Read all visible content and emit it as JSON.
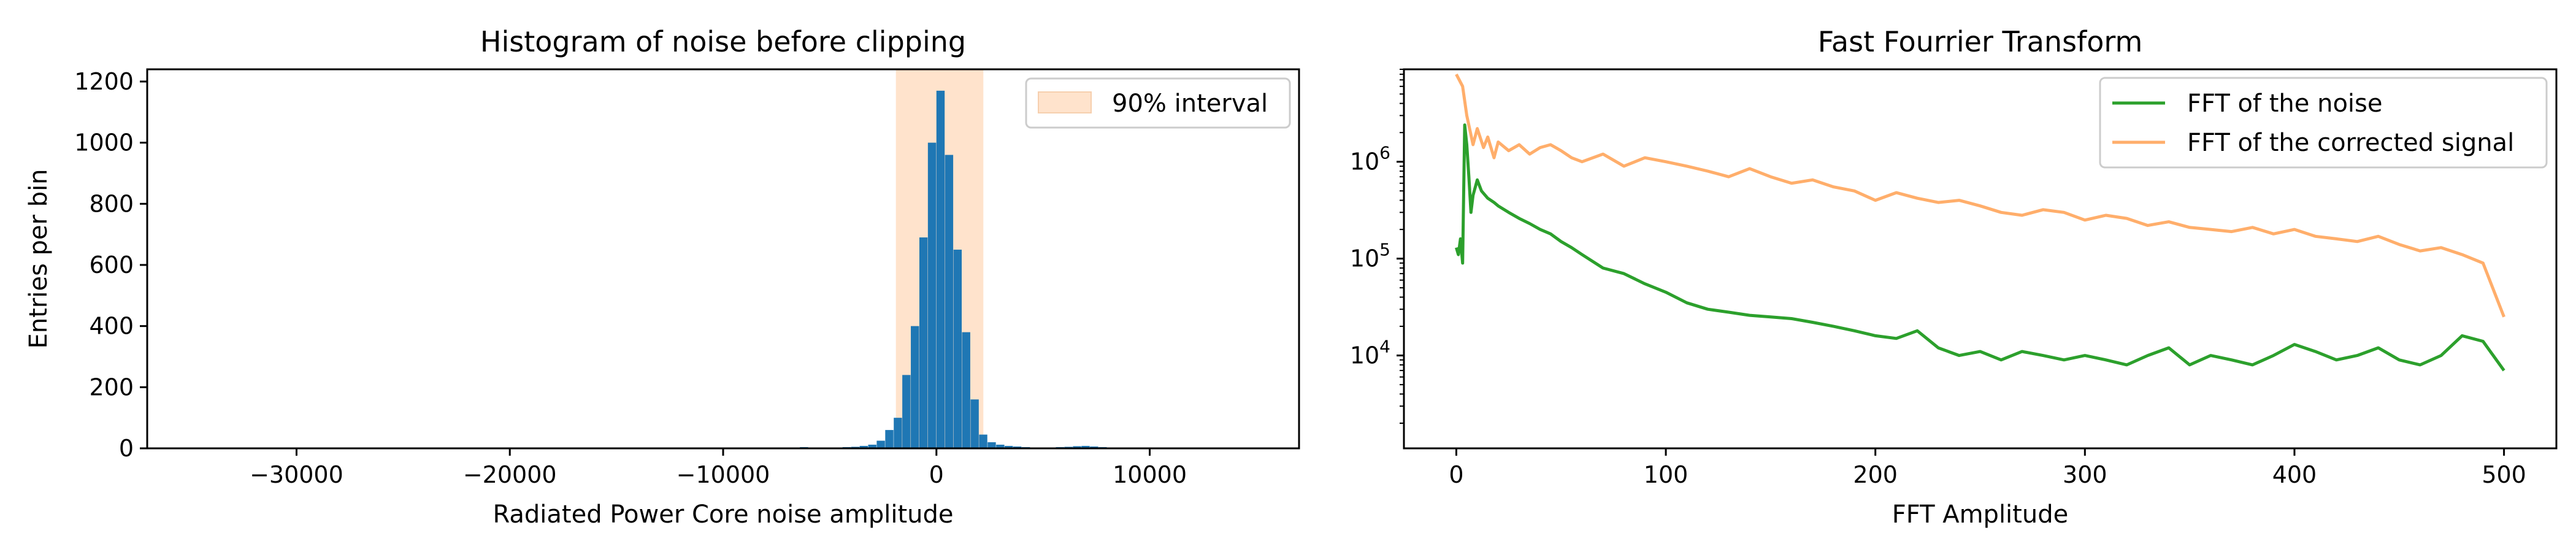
{
  "chart_data": [
    {
      "type": "bar",
      "title": "Histogram of noise before clipping",
      "xlabel": "Radiated Power Core noise amplitude",
      "ylabel": "Entries per bin",
      "xlim": [
        -37000,
        17000
      ],
      "ylim": [
        0,
        1240
      ],
      "xticks": [
        -30000,
        -20000,
        -10000,
        0,
        10000
      ],
      "xtick_labels": [
        "−30000",
        "−20000",
        "−10000",
        "0",
        "10000"
      ],
      "yticks": [
        0,
        200,
        400,
        600,
        800,
        1000,
        1200
      ],
      "ytick_labels": [
        "0",
        "200",
        "400",
        "600",
        "800",
        "1000",
        "1200"
      ],
      "grid": false,
      "legend_position": "top-right",
      "bar_color": "#1f77b4",
      "shaded_interval": {
        "label": "90% interval",
        "x0": -1900,
        "x1": 2200,
        "color": "#ffe3cc"
      },
      "bin_width": 400,
      "bins": [
        {
          "x": -7400,
          "v": 2
        },
        {
          "x": -7000,
          "v": 3
        },
        {
          "x": -6600,
          "v": 3
        },
        {
          "x": -6200,
          "v": 4
        },
        {
          "x": -5800,
          "v": 3
        },
        {
          "x": -5400,
          "v": 2
        },
        {
          "x": -5000,
          "v": 2
        },
        {
          "x": -4600,
          "v": 3
        },
        {
          "x": -4200,
          "v": 4
        },
        {
          "x": -3800,
          "v": 5
        },
        {
          "x": -3400,
          "v": 8
        },
        {
          "x": -3000,
          "v": 12
        },
        {
          "x": -2600,
          "v": 25
        },
        {
          "x": -2200,
          "v": 60
        },
        {
          "x": -1800,
          "v": 100
        },
        {
          "x": -1400,
          "v": 240
        },
        {
          "x": -1000,
          "v": 400
        },
        {
          "x": -600,
          "v": 690
        },
        {
          "x": -200,
          "v": 1000
        },
        {
          "x": 200,
          "v": 1170
        },
        {
          "x": 600,
          "v": 960
        },
        {
          "x": 1000,
          "v": 650
        },
        {
          "x": 1400,
          "v": 380
        },
        {
          "x": 1800,
          "v": 160
        },
        {
          "x": 2200,
          "v": 45
        },
        {
          "x": 2600,
          "v": 20
        },
        {
          "x": 3000,
          "v": 12
        },
        {
          "x": 3400,
          "v": 8
        },
        {
          "x": 3800,
          "v": 6
        },
        {
          "x": 4200,
          "v": 4
        },
        {
          "x": 4600,
          "v": 3
        },
        {
          "x": 5000,
          "v": 3
        },
        {
          "x": 5400,
          "v": 3
        },
        {
          "x": 5800,
          "v": 4
        },
        {
          "x": 6200,
          "v": 5
        },
        {
          "x": 6600,
          "v": 7
        },
        {
          "x": 7000,
          "v": 8
        },
        {
          "x": 7400,
          "v": 6
        },
        {
          "x": 7800,
          "v": 4
        },
        {
          "x": 8200,
          "v": 2
        }
      ]
    },
    {
      "type": "line",
      "title": "Fast Fourrier Transform",
      "xlabel": "FFT Amplitude",
      "ylabel": "",
      "xlim": [
        -25,
        525
      ],
      "ylim": [
        1100,
        9000000
      ],
      "yscale": "log",
      "xticks": [
        0,
        100,
        200,
        300,
        400,
        500
      ],
      "xtick_labels": [
        "0",
        "100",
        "200",
        "300",
        "400",
        "500"
      ],
      "yticks": [
        10000,
        100000,
        1000000
      ],
      "ytick_labels": [
        "10",
        "10",
        "10"
      ],
      "ytick_exponents": [
        "4",
        "5",
        "6"
      ],
      "grid": false,
      "legend_position": "top-right",
      "series": [
        {
          "name": "FFT of the noise",
          "color": "#2ca02c",
          "x": [
            0,
            1,
            2,
            3,
            4,
            5,
            6,
            7,
            8,
            10,
            12,
            15,
            18,
            20,
            25,
            30,
            35,
            40,
            45,
            50,
            55,
            60,
            70,
            80,
            90,
            100,
            110,
            120,
            130,
            140,
            150,
            160,
            170,
            180,
            190,
            200,
            210,
            220,
            230,
            240,
            250,
            260,
            270,
            280,
            290,
            300,
            310,
            320,
            330,
            340,
            350,
            360,
            370,
            380,
            390,
            400,
            410,
            420,
            430,
            440,
            450,
            460,
            470,
            480,
            490,
            500
          ],
          "values": [
            130000,
            110000,
            160000,
            90000,
            2400000,
            1500000,
            700000,
            300000,
            450000,
            650000,
            500000,
            420000,
            380000,
            350000,
            300000,
            260000,
            230000,
            200000,
            180000,
            150000,
            130000,
            110000,
            80000,
            70000,
            55000,
            45000,
            35000,
            30000,
            28000,
            26000,
            25000,
            24000,
            22000,
            20000,
            18000,
            16000,
            15000,
            18000,
            12000,
            10000,
            11000,
            9000,
            11000,
            10000,
            9000,
            10000,
            9000,
            8000,
            10000,
            12000,
            8000,
            10000,
            9000,
            8000,
            10000,
            13000,
            11000,
            9000,
            10000,
            12000,
            9000,
            8000,
            10000,
            16000,
            14000,
            7000
          ]
        },
        {
          "name": "FFT of the corrected signal",
          "color": "#ffae6b",
          "x": [
            0,
            3,
            5,
            8,
            10,
            13,
            15,
            18,
            20,
            25,
            30,
            35,
            40,
            45,
            50,
            55,
            60,
            70,
            80,
            90,
            100,
            110,
            120,
            130,
            140,
            150,
            160,
            170,
            180,
            190,
            200,
            210,
            220,
            230,
            240,
            250,
            260,
            270,
            280,
            290,
            300,
            310,
            320,
            330,
            340,
            350,
            360,
            370,
            380,
            390,
            400,
            410,
            420,
            430,
            440,
            450,
            460,
            470,
            480,
            490,
            500
          ],
          "values": [
            8000000,
            6000000,
            3000000,
            1500000,
            2200000,
            1400000,
            1800000,
            1100000,
            1600000,
            1300000,
            1500000,
            1200000,
            1400000,
            1500000,
            1300000,
            1100000,
            1000000,
            1200000,
            900000,
            1100000,
            1000000,
            900000,
            800000,
            700000,
            850000,
            700000,
            600000,
            650000,
            550000,
            500000,
            400000,
            480000,
            420000,
            380000,
            400000,
            350000,
            300000,
            280000,
            320000,
            300000,
            250000,
            280000,
            260000,
            220000,
            240000,
            210000,
            200000,
            190000,
            210000,
            180000,
            200000,
            170000,
            160000,
            150000,
            170000,
            140000,
            120000,
            130000,
            110000,
            90000,
            25000
          ]
        }
      ]
    }
  ]
}
